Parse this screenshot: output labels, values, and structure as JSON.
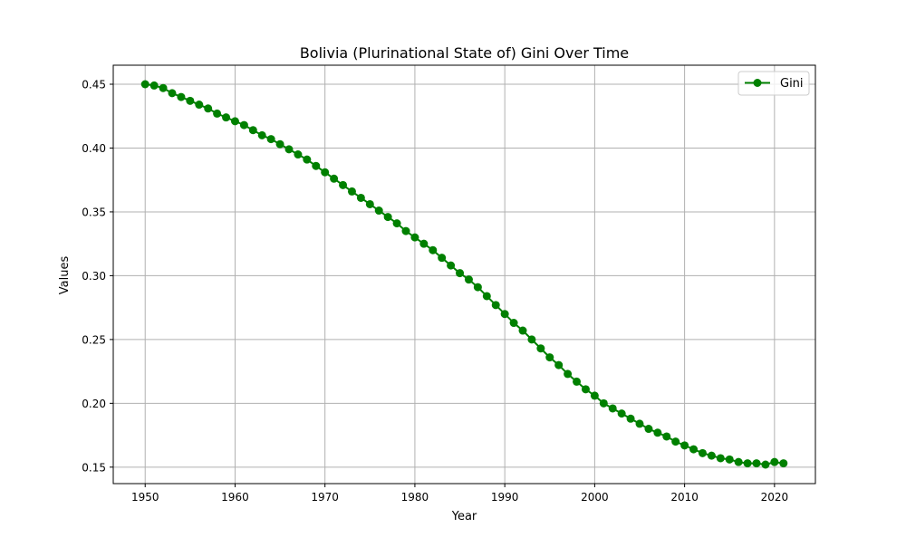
{
  "chart_data": {
    "type": "line",
    "title": "Bolivia (Plurinational State of) Gini Over Time",
    "xlabel": "Year",
    "ylabel": "Values",
    "xlim": [
      1946.45,
      2024.55
    ],
    "ylim": [
      0.1371,
      0.4649
    ],
    "grid": true,
    "legend_position": "top-right",
    "x_ticks": [
      1950,
      1960,
      1970,
      1980,
      1990,
      2000,
      2010,
      2020
    ],
    "y_ticks": [
      0.15,
      0.2,
      0.25,
      0.3,
      0.35,
      0.4,
      0.45
    ],
    "x_tick_labels": [
      "1950",
      "1960",
      "1970",
      "1980",
      "1990",
      "2000",
      "2010",
      "2020"
    ],
    "y_tick_labels": [
      "0.15",
      "0.20",
      "0.25",
      "0.30",
      "0.35",
      "0.40",
      "0.45"
    ],
    "series": [
      {
        "name": "Gini",
        "color": "#008000",
        "marker": "circle",
        "x": [
          1950,
          1951,
          1952,
          1953,
          1954,
          1955,
          1956,
          1957,
          1958,
          1959,
          1960,
          1961,
          1962,
          1963,
          1964,
          1965,
          1966,
          1967,
          1968,
          1969,
          1970,
          1971,
          1972,
          1973,
          1974,
          1975,
          1976,
          1977,
          1978,
          1979,
          1980,
          1981,
          1982,
          1983,
          1984,
          1985,
          1986,
          1987,
          1988,
          1989,
          1990,
          1991,
          1992,
          1993,
          1994,
          1995,
          1996,
          1997,
          1998,
          1999,
          2000,
          2001,
          2002,
          2003,
          2004,
          2005,
          2006,
          2007,
          2008,
          2009,
          2010,
          2011,
          2012,
          2013,
          2014,
          2015,
          2016,
          2017,
          2018,
          2019,
          2020,
          2021
        ],
        "values": [
          0.45,
          0.449,
          0.447,
          0.443,
          0.44,
          0.437,
          0.434,
          0.431,
          0.427,
          0.424,
          0.421,
          0.418,
          0.414,
          0.41,
          0.407,
          0.403,
          0.399,
          0.395,
          0.391,
          0.386,
          0.381,
          0.376,
          0.371,
          0.366,
          0.361,
          0.356,
          0.351,
          0.346,
          0.341,
          0.335,
          0.33,
          0.325,
          0.32,
          0.314,
          0.308,
          0.302,
          0.297,
          0.291,
          0.284,
          0.277,
          0.27,
          0.263,
          0.257,
          0.25,
          0.243,
          0.236,
          0.23,
          0.223,
          0.217,
          0.211,
          0.206,
          0.2,
          0.196,
          0.192,
          0.188,
          0.184,
          0.18,
          0.177,
          0.174,
          0.17,
          0.167,
          0.164,
          0.161,
          0.159,
          0.157,
          0.156,
          0.154,
          0.153,
          0.153,
          0.152,
          0.154,
          0.153
        ]
      }
    ]
  }
}
